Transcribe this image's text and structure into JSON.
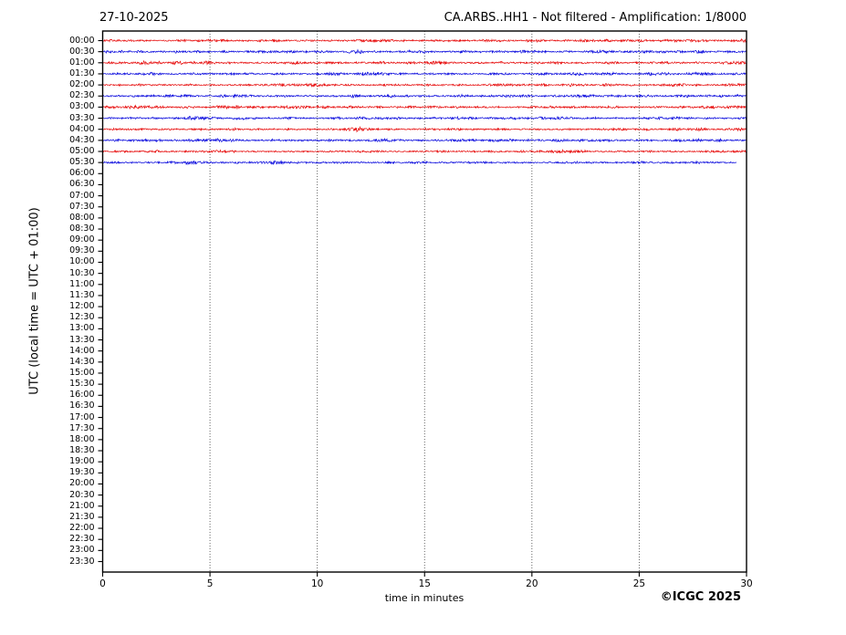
{
  "chart_data": {
    "type": "line",
    "subtype": "helicorder-dayplot",
    "title_left": "27-10-2025",
    "title_right": "CA.ARBS..HH1 - Not filtered - Amplification: 1/8000",
    "ylabel": "UTC (local time = UTC + 01:00)",
    "xlabel": "time in minutes",
    "credit": "©ICGC 2025",
    "xlim": [
      0,
      30
    ],
    "x_ticks": [
      0,
      5,
      10,
      15,
      20,
      25,
      30
    ],
    "grid_x": [
      5,
      10,
      15,
      20,
      25
    ],
    "grid_on": true,
    "minutes_per_row": 30,
    "colors": {
      "red": "#e60000",
      "blue": "#0000dc",
      "axis": "#000000",
      "grid": "#555555"
    },
    "y_tick_labels": [
      "00:00",
      "00:30",
      "01:00",
      "01:30",
      "02:00",
      "02:30",
      "03:00",
      "03:30",
      "04:00",
      "04:30",
      "05:00",
      "05:30",
      "06:00",
      "06:30",
      "07:00",
      "07:30",
      "08:00",
      "08:30",
      "09:00",
      "09:30",
      "10:00",
      "10:30",
      "11:00",
      "11:30",
      "12:00",
      "12:30",
      "13:00",
      "13:30",
      "14:00",
      "14:30",
      "15:00",
      "15:30",
      "16:00",
      "16:30",
      "17:00",
      "17:30",
      "18:00",
      "18:30",
      "19:00",
      "19:30",
      "20:00",
      "20:30",
      "21:00",
      "21:30",
      "22:00",
      "22:30",
      "23:00",
      "23:30"
    ],
    "rows": [
      {
        "label": "00:00",
        "color": "red",
        "start_min": 0,
        "end_min": 30,
        "seed": 101,
        "amp": 0.8,
        "bursts": [
          {
            "m": 12.3,
            "a": 0.5,
            "w": 0.5
          },
          {
            "m": 22.6,
            "a": 0.6,
            "w": 0.4
          }
        ]
      },
      {
        "label": "00:30",
        "color": "blue",
        "start_min": 0,
        "end_min": 30,
        "seed": 202,
        "amp": 0.85,
        "bursts": [
          {
            "m": 8.2,
            "a": 0.5,
            "w": 0.6
          },
          {
            "m": 25.4,
            "a": 0.5,
            "w": 0.5
          }
        ]
      },
      {
        "label": "01:00",
        "color": "red",
        "start_min": 0,
        "end_min": 30,
        "seed": 303,
        "amp": 0.85,
        "bursts": [
          {
            "m": 2.1,
            "a": 0.6,
            "w": 0.7
          },
          {
            "m": 9.3,
            "a": 0.5,
            "w": 0.5
          }
        ]
      },
      {
        "label": "01:30",
        "color": "blue",
        "start_min": 0,
        "end_min": 30,
        "seed": 404,
        "amp": 0.8,
        "bursts": [
          {
            "m": 12.9,
            "a": 0.6,
            "w": 0.5
          },
          {
            "m": 26.0,
            "a": 0.5,
            "w": 0.4
          }
        ]
      },
      {
        "label": "02:00",
        "color": "red",
        "start_min": 0,
        "end_min": 30,
        "seed": 505,
        "amp": 0.75,
        "bursts": [
          {
            "m": 9.9,
            "a": 1.1,
            "w": 0.5
          },
          {
            "m": 18.5,
            "a": 0.4,
            "w": 0.5
          }
        ]
      },
      {
        "label": "02:30",
        "color": "blue",
        "start_min": 0,
        "end_min": 30,
        "seed": 606,
        "amp": 0.85,
        "bursts": [
          {
            "m": 6.3,
            "a": 0.9,
            "w": 0.4
          },
          {
            "m": 22.2,
            "a": 0.7,
            "w": 0.4
          }
        ]
      },
      {
        "label": "03:00",
        "color": "red",
        "start_min": 0,
        "end_min": 30,
        "seed": 707,
        "amp": 0.85,
        "bursts": [
          {
            "m": 1.8,
            "a": 0.7,
            "w": 0.6
          },
          {
            "m": 15.2,
            "a": 0.4,
            "w": 0.5
          }
        ]
      },
      {
        "label": "03:30",
        "color": "blue",
        "start_min": 0,
        "end_min": 30,
        "seed": 808,
        "amp": 0.85,
        "bursts": [
          {
            "m": 4.4,
            "a": 1.0,
            "w": 0.4
          },
          {
            "m": 16.8,
            "a": 0.5,
            "w": 0.5
          }
        ]
      },
      {
        "label": "04:00",
        "color": "red",
        "start_min": 0,
        "end_min": 30,
        "seed": 909,
        "amp": 0.8,
        "bursts": [
          {
            "m": 11.8,
            "a": 1.7,
            "w": 0.35
          },
          {
            "m": 24.0,
            "a": 0.5,
            "w": 0.5
          }
        ]
      },
      {
        "label": "04:30",
        "color": "blue",
        "start_min": 0,
        "end_min": 30,
        "seed": 111,
        "amp": 0.85,
        "bursts": [
          {
            "m": 13.1,
            "a": 0.8,
            "w": 0.5
          },
          {
            "m": 5.0,
            "a": 0.5,
            "w": 0.5
          }
        ]
      },
      {
        "label": "05:00",
        "color": "red",
        "start_min": 0,
        "end_min": 30,
        "seed": 222,
        "amp": 0.7,
        "bursts": [
          {
            "m": 5.4,
            "a": 0.9,
            "w": 0.4
          },
          {
            "m": 21.0,
            "a": 0.5,
            "w": 0.6
          }
        ]
      },
      {
        "label": "05:30",
        "color": "blue",
        "start_min": 0,
        "end_min": 29.55,
        "seed": 333,
        "amp": 0.8,
        "bursts": [
          {
            "m": 4.2,
            "a": 0.8,
            "w": 0.5
          },
          {
            "m": 7.6,
            "a": 0.6,
            "w": 0.4
          }
        ]
      }
    ]
  }
}
